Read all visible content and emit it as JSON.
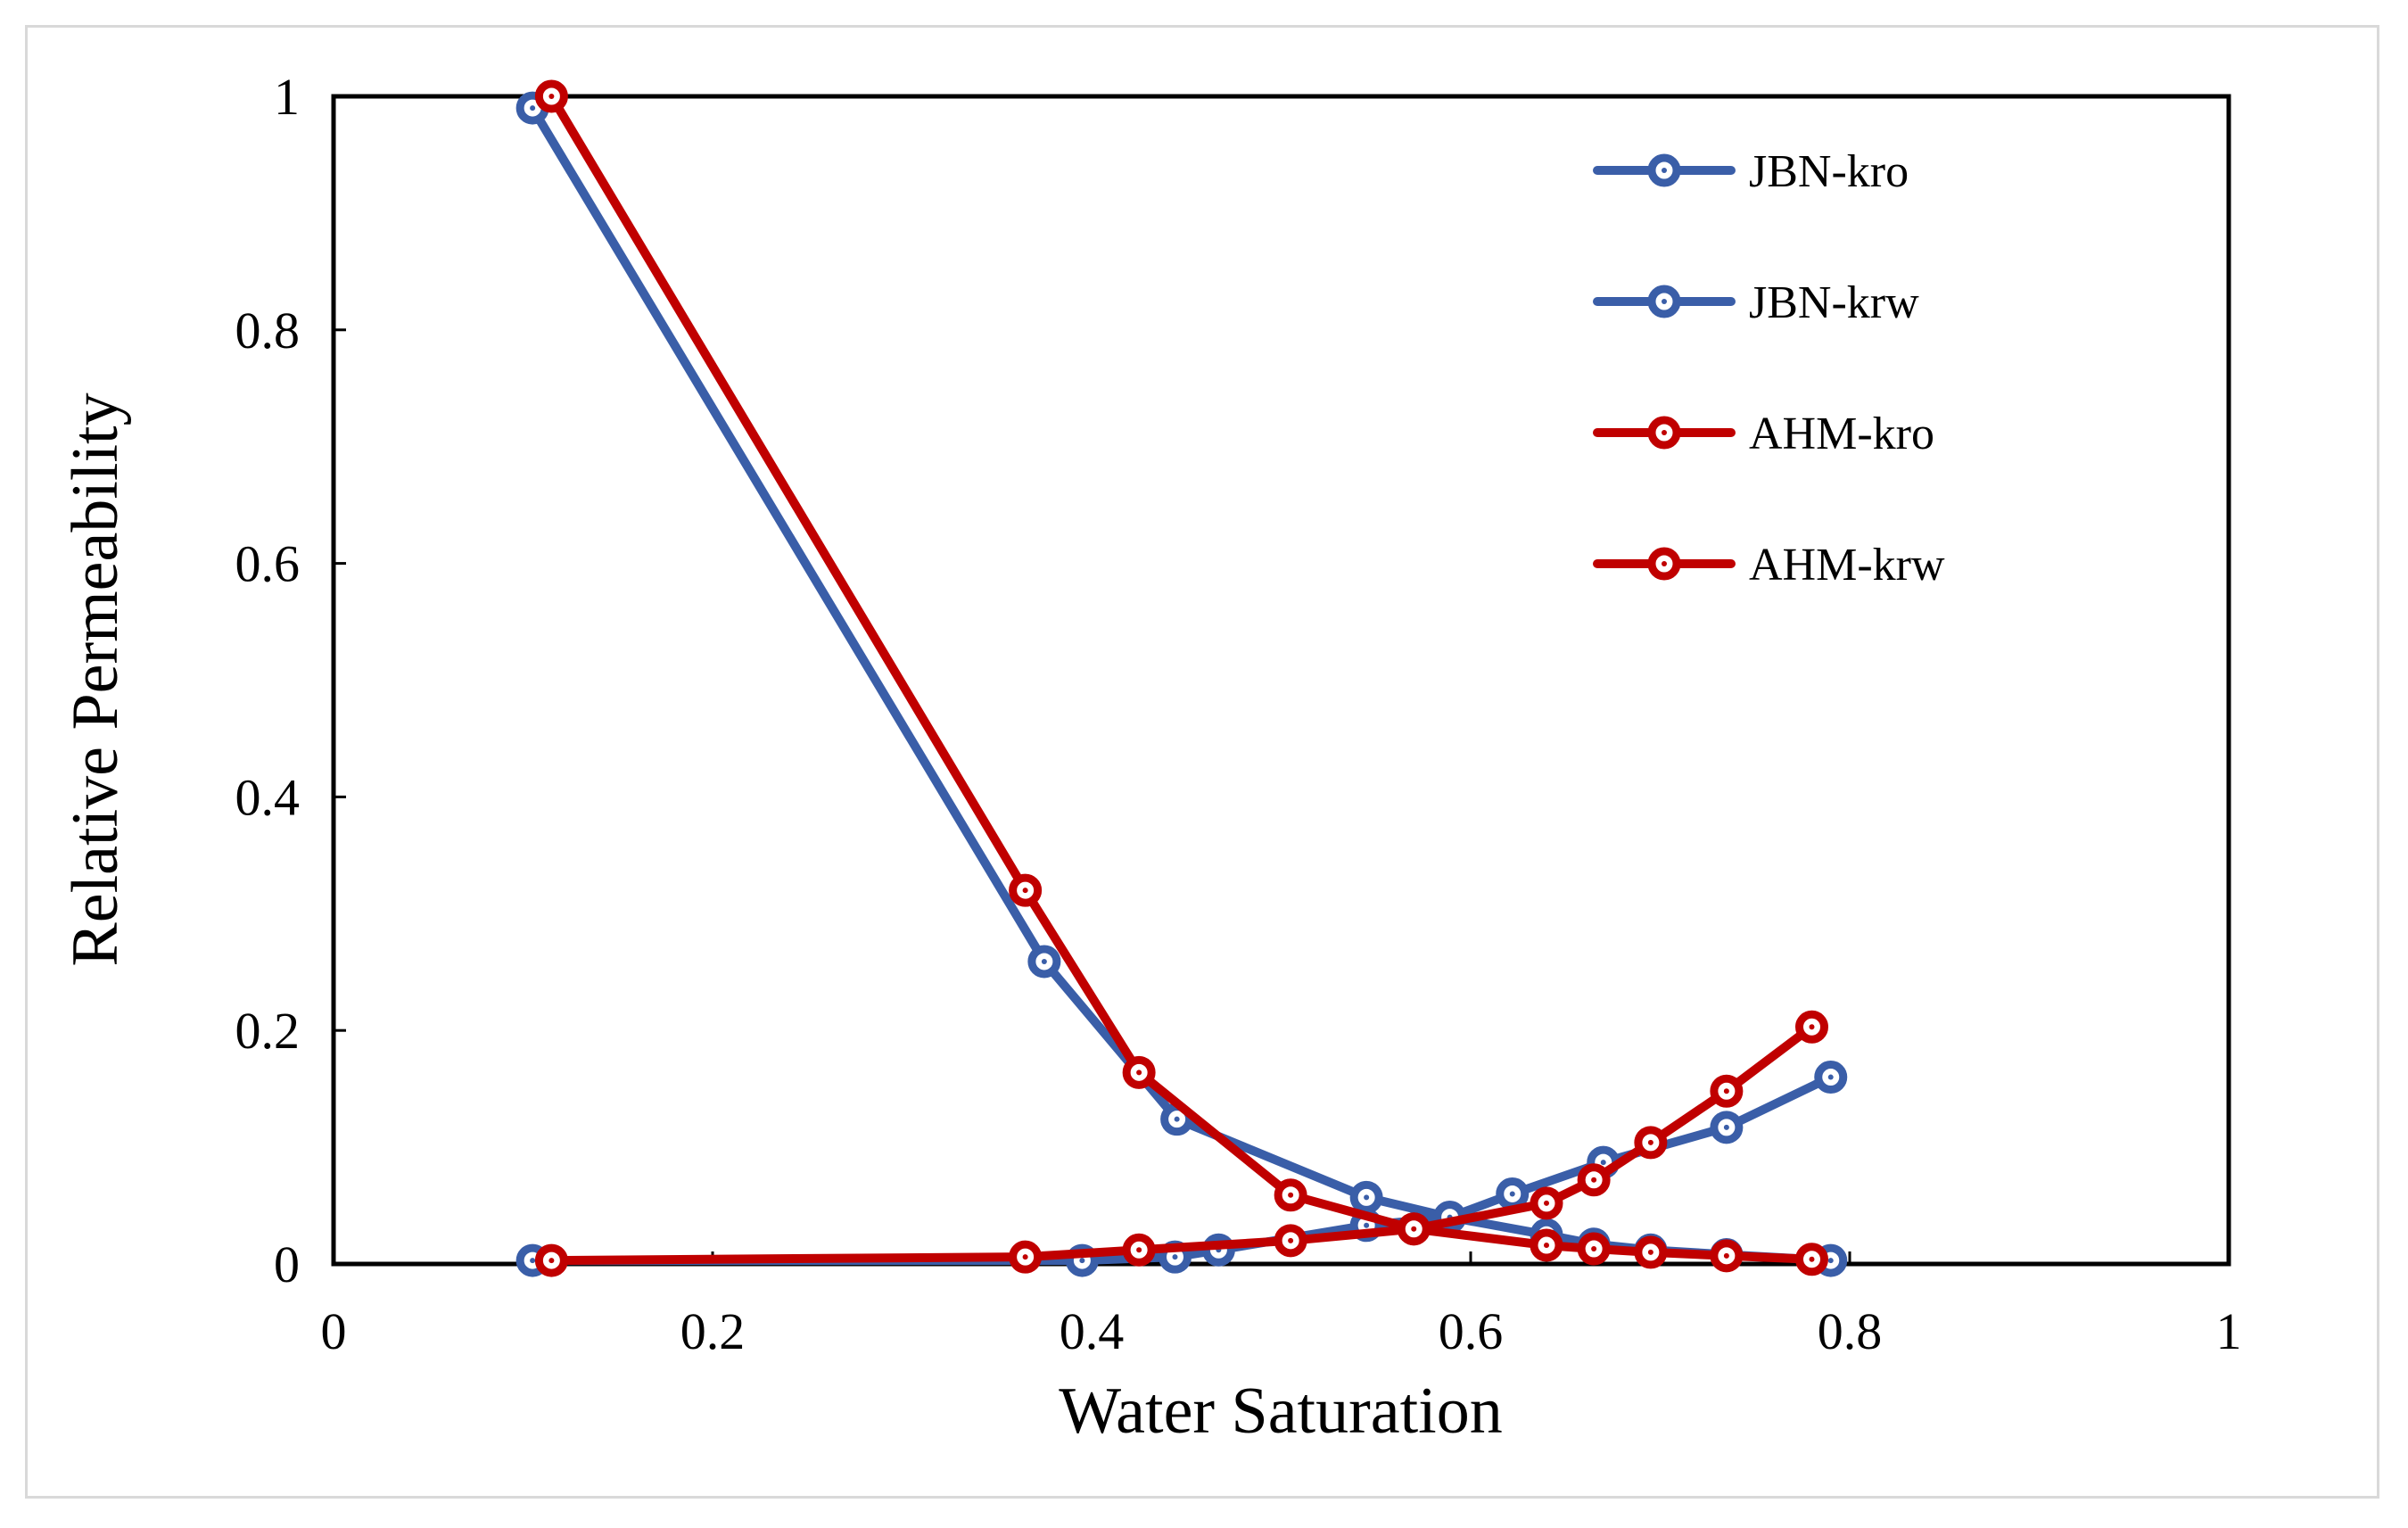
{
  "chart_data": {
    "type": "line",
    "title": "",
    "xlabel": "Water Saturation",
    "ylabel": "Relative Permeability",
    "xlim": [
      0,
      1
    ],
    "ylim": [
      0,
      1
    ],
    "xticks": [
      0,
      0.2,
      0.4,
      0.6,
      0.8,
      1
    ],
    "xtick_labels": [
      "0",
      "0.2",
      "0.4",
      "0.6",
      "0.8",
      "1"
    ],
    "yticks": [
      0,
      0.2,
      0.4,
      0.6,
      0.8,
      1
    ],
    "ytick_labels": [
      "0",
      "0.2",
      "0.4",
      "0.6",
      "0.8",
      "1"
    ],
    "grid": false,
    "legend_position": "top-right",
    "series": [
      {
        "name": "JBN-kro",
        "color": "#3a5ea8",
        "x": [
          0.105,
          0.375,
          0.445,
          0.545,
          0.589,
          0.64,
          0.665,
          0.695,
          0.735,
          0.79
        ],
        "y": [
          0.99,
          0.259,
          0.124,
          0.057,
          0.04,
          0.025,
          0.017,
          0.012,
          0.008,
          0.003
        ]
      },
      {
        "name": "JBN-krw",
        "color": "#3a5ea8",
        "x": [
          0.105,
          0.395,
          0.444,
          0.467,
          0.545,
          0.589,
          0.622,
          0.67,
          0.735,
          0.79
        ],
        "y": [
          0.003,
          0.003,
          0.006,
          0.012,
          0.033,
          0.04,
          0.06,
          0.087,
          0.117,
          0.16
        ]
      },
      {
        "name": "AHM-kro",
        "color": "#c00000",
        "x": [
          0.115,
          0.365,
          0.425,
          0.505,
          0.57,
          0.64,
          0.665,
          0.695,
          0.735,
          0.78
        ],
        "y": [
          1.0,
          0.32,
          0.164,
          0.059,
          0.03,
          0.016,
          0.013,
          0.01,
          0.007,
          0.004
        ]
      },
      {
        "name": "AHM-krw",
        "color": "#c00000",
        "x": [
          0.115,
          0.365,
          0.425,
          0.505,
          0.57,
          0.64,
          0.665,
          0.695,
          0.735,
          0.78
        ],
        "y": [
          0.003,
          0.006,
          0.012,
          0.02,
          0.03,
          0.052,
          0.072,
          0.104,
          0.148,
          0.203
        ]
      }
    ]
  }
}
